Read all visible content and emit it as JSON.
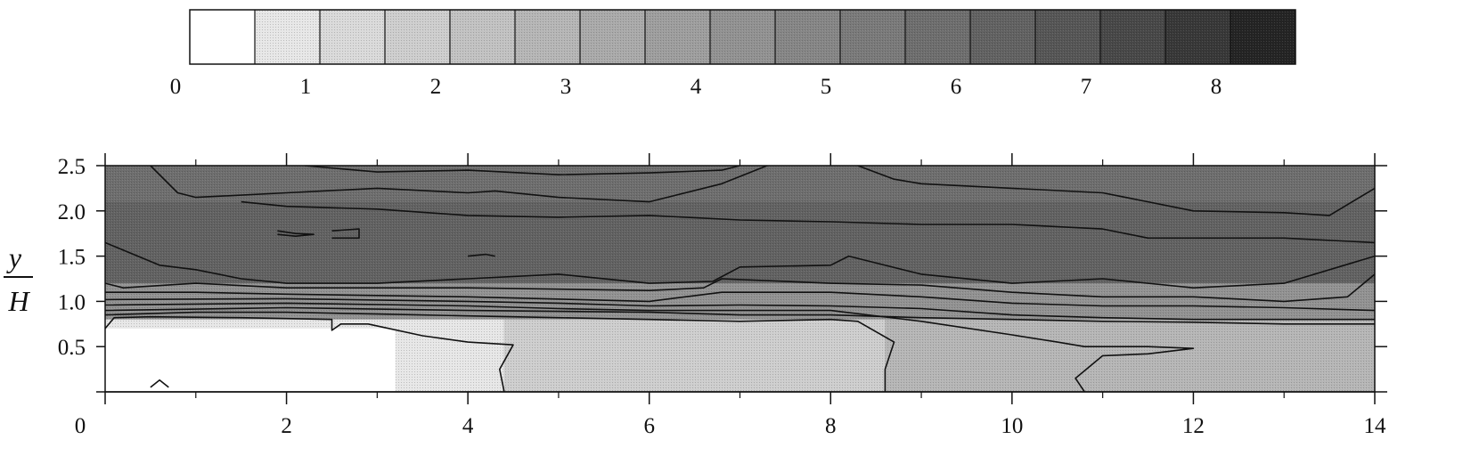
{
  "chart_data": {
    "type": "heatmap",
    "title": "",
    "xlabel": "",
    "ylabel": {
      "numerator": "y",
      "denominator": "H"
    },
    "xlim": [
      0,
      14
    ],
    "ylim": [
      0,
      2.5
    ],
    "x_ticks": [
      0,
      2,
      4,
      6,
      8,
      10,
      12,
      14
    ],
    "x_tick_labels": [
      "0",
      "2",
      "4",
      "6",
      "8",
      "10",
      "12",
      "14"
    ],
    "y_ticks": [
      0.5,
      1.0,
      1.5,
      2.0,
      2.5
    ],
    "y_tick_labels": [
      "0.5",
      "1.0",
      "1.5",
      "2.0",
      "2.5"
    ],
    "grid": false,
    "colorbar": {
      "placement": "top",
      "range": [
        0,
        8.5
      ],
      "bin_edges": [
        0,
        0.5,
        1,
        1.5,
        2,
        2.5,
        3,
        3.5,
        4,
        4.5,
        5,
        5.5,
        6,
        6.5,
        7,
        7.5,
        8,
        8.5
      ],
      "tick_values": [
        0,
        1,
        2,
        3,
        4,
        5,
        6,
        7,
        8
      ],
      "tick_labels": [
        "0",
        "1",
        "2",
        "3",
        "4",
        "5",
        "6",
        "7",
        "8"
      ],
      "colors": [
        "#ffffff",
        "#e7e7e7",
        "#dadada",
        "#cecece",
        "#c2c2c2",
        "#b6b6b6",
        "#aaaaaa",
        "#9e9e9e",
        "#929292",
        "#868686",
        "#7a7a7a",
        "#6e6e6e",
        "#626262",
        "#565656",
        "#484848",
        "#383838",
        "#242424"
      ]
    },
    "contours": [
      {
        "level": 1.5,
        "points": [
          [
            0,
            0.7
          ],
          [
            0.1,
            0.82
          ],
          [
            0.5,
            0.83
          ],
          [
            1.5,
            0.82
          ],
          [
            2.5,
            0.8
          ],
          [
            2.5,
            0.68
          ],
          [
            2.6,
            0.75
          ],
          [
            2.9,
            0.75
          ],
          [
            3.5,
            0.62
          ],
          [
            4.0,
            0.55
          ],
          [
            4.5,
            0.52
          ],
          [
            4.35,
            0.25
          ],
          [
            4.4,
            0
          ]
        ]
      },
      {
        "level": 1.5,
        "points": [
          [
            0.5,
            0.05
          ],
          [
            0.6,
            0.13
          ],
          [
            0.7,
            0.05
          ]
        ]
      },
      {
        "level": 2.0,
        "points": [
          [
            0,
            0.85
          ],
          [
            1,
            0.88
          ],
          [
            2,
            0.88
          ],
          [
            3,
            0.86
          ],
          [
            4,
            0.84
          ],
          [
            5,
            0.82
          ],
          [
            6,
            0.8
          ],
          [
            7,
            0.78
          ],
          [
            8,
            0.8
          ],
          [
            8.3,
            0.78
          ],
          [
            8.7,
            0.55
          ],
          [
            8.6,
            0.25
          ],
          [
            8.6,
            0
          ]
        ]
      },
      {
        "level": 2.5,
        "points": [
          [
            0,
            0.9
          ],
          [
            2,
            0.93
          ],
          [
            4,
            0.9
          ],
          [
            6,
            0.88
          ],
          [
            7,
            0.85
          ],
          [
            8,
            0.85
          ],
          [
            9,
            0.82
          ],
          [
            10,
            0.8
          ],
          [
            11,
            0.78
          ],
          [
            12,
            0.77
          ],
          [
            13,
            0.75
          ],
          [
            14,
            0.75
          ]
        ]
      },
      {
        "level": 3.0,
        "points": [
          [
            0,
            0.96
          ],
          [
            2,
            0.98
          ],
          [
            4,
            0.95
          ],
          [
            5,
            0.92
          ],
          [
            6,
            0.9
          ],
          [
            8,
            0.9
          ],
          [
            9,
            0.78
          ],
          [
            10,
            0.63
          ],
          [
            10.5,
            0.55
          ],
          [
            10.8,
            0.5
          ],
          [
            11.5,
            0.5
          ],
          [
            12.0,
            0.48
          ],
          [
            11.5,
            0.42
          ],
          [
            11.0,
            0.4
          ],
          [
            10.7,
            0.15
          ],
          [
            10.8,
            0
          ]
        ]
      },
      {
        "level": 3.5,
        "points": [
          [
            0,
            1.02
          ],
          [
            2,
            1.03
          ],
          [
            4,
            1.0
          ],
          [
            5,
            0.98
          ],
          [
            6,
            0.95
          ],
          [
            7,
            0.96
          ],
          [
            8,
            0.95
          ],
          [
            9,
            0.92
          ],
          [
            10,
            0.85
          ],
          [
            11,
            0.82
          ],
          [
            12,
            0.8
          ],
          [
            13,
            0.8
          ],
          [
            14,
            0.8
          ]
        ]
      },
      {
        "level": 4.0,
        "points": [
          [
            0,
            1.1
          ],
          [
            1,
            1.1
          ],
          [
            2,
            1.08
          ],
          [
            4,
            1.05
          ],
          [
            6,
            1.0
          ],
          [
            6.8,
            1.1
          ],
          [
            8,
            1.1
          ],
          [
            9,
            1.05
          ],
          [
            10,
            0.98
          ],
          [
            11,
            0.95
          ],
          [
            12,
            0.95
          ],
          [
            13,
            0.93
          ],
          [
            14,
            0.9
          ]
        ]
      },
      {
        "level": 4.5,
        "points": [
          [
            0,
            1.2
          ],
          [
            0.2,
            1.15
          ],
          [
            1,
            1.2
          ],
          [
            2,
            1.15
          ],
          [
            4,
            1.15
          ],
          [
            6,
            1.12
          ],
          [
            6.6,
            1.15
          ],
          [
            6.8,
            1.25
          ],
          [
            8,
            1.2
          ],
          [
            9,
            1.18
          ],
          [
            10,
            1.1
          ],
          [
            11,
            1.05
          ],
          [
            12,
            1.05
          ],
          [
            13,
            1.0
          ],
          [
            13.7,
            1.05
          ],
          [
            14,
            1.3
          ]
        ]
      },
      {
        "level": 5.0,
        "points": [
          [
            0,
            1.65
          ],
          [
            0.6,
            1.4
          ],
          [
            1,
            1.35
          ],
          [
            1.5,
            1.25
          ],
          [
            2,
            1.2
          ],
          [
            3,
            1.2
          ],
          [
            4,
            1.25
          ],
          [
            5,
            1.3
          ],
          [
            6,
            1.2
          ],
          [
            6.7,
            1.22
          ],
          [
            7,
            1.38
          ],
          [
            8,
            1.4
          ],
          [
            8.2,
            1.5
          ],
          [
            9,
            1.3
          ],
          [
            10,
            1.2
          ],
          [
            11,
            1.25
          ],
          [
            12,
            1.15
          ],
          [
            13,
            1.2
          ],
          [
            14,
            1.5
          ]
        ]
      },
      {
        "level": 5.5,
        "points": [
          [
            0.5,
            2.5
          ],
          [
            0.8,
            2.2
          ],
          [
            1,
            2.15
          ],
          [
            2,
            2.2
          ],
          [
            3,
            2.25
          ],
          [
            4,
            2.2
          ],
          [
            4.3,
            2.22
          ],
          [
            5,
            2.15
          ],
          [
            6,
            2.1
          ],
          [
            6.8,
            2.3
          ],
          [
            7.3,
            2.5
          ]
        ]
      },
      {
        "level": 5.5,
        "points": [
          [
            8.3,
            2.5
          ],
          [
            8.7,
            2.35
          ],
          [
            9,
            2.3
          ],
          [
            10,
            2.25
          ],
          [
            11,
            2.2
          ],
          [
            11.5,
            2.1
          ],
          [
            12,
            2.0
          ],
          [
            13,
            1.98
          ],
          [
            13.5,
            1.95
          ],
          [
            14,
            2.25
          ]
        ]
      },
      {
        "level": 6.0,
        "points": [
          [
            2.2,
            2.5
          ],
          [
            3,
            2.43
          ],
          [
            4,
            2.45
          ],
          [
            5,
            2.4
          ],
          [
            6,
            2.42
          ],
          [
            6.8,
            2.45
          ],
          [
            7,
            2.5
          ]
        ]
      },
      {
        "level": 6.0,
        "points": [
          [
            1.5,
            2.1
          ],
          [
            2,
            2.05
          ],
          [
            3,
            2.02
          ],
          [
            4,
            1.95
          ],
          [
            5,
            1.93
          ],
          [
            6,
            1.95
          ],
          [
            7,
            1.9
          ],
          [
            8,
            1.88
          ],
          [
            9,
            1.85
          ],
          [
            10,
            1.85
          ],
          [
            11,
            1.8
          ],
          [
            11.5,
            1.7
          ],
          [
            12,
            1.7
          ],
          [
            13,
            1.7
          ],
          [
            14,
            1.65
          ]
        ]
      },
      {
        "level": 6.5,
        "points": [
          [
            1.9,
            1.78
          ],
          [
            2.1,
            1.75
          ],
          [
            2.3,
            1.74
          ],
          [
            2.1,
            1.72
          ],
          [
            1.9,
            1.74
          ]
        ]
      },
      {
        "level": 6.5,
        "points": [
          [
            2.5,
            1.78
          ],
          [
            2.8,
            1.8
          ],
          [
            2.8,
            1.7
          ],
          [
            2.5,
            1.7
          ]
        ]
      },
      {
        "level": 6.5,
        "points": [
          [
            4.0,
            1.5
          ],
          [
            4.2,
            1.52
          ],
          [
            4.3,
            1.5
          ]
        ]
      }
    ],
    "field_shading": {
      "bands": [
        {
          "range": [
            0.0,
            0.5
          ],
          "color_index": 0
        },
        {
          "range": [
            0.5,
            1.5
          ],
          "color_index": 1
        },
        {
          "range": [
            1.5,
            2.5
          ],
          "color_index": 2
        },
        {
          "range": [
            2.5,
            3.0
          ],
          "color_index": 5
        },
        {
          "range": [
            3.0,
            3.5
          ],
          "color_index": 6
        },
        {
          "range": [
            3.5,
            4.0
          ],
          "color_index": 7
        },
        {
          "range": [
            4.0,
            4.5
          ],
          "color_index": 8
        },
        {
          "range": [
            4.5,
            5.0
          ],
          "color_index": 9
        },
        {
          "range": [
            5.0,
            5.5
          ],
          "color_index": 10
        },
        {
          "range": [
            5.5,
            6.0
          ],
          "color_index": 11
        },
        {
          "range": [
            6.0,
            6.5
          ],
          "color_index": 12
        },
        {
          "range": [
            6.5,
            8.5
          ],
          "color_index": 13
        }
      ],
      "low_region": {
        "x": [
          0,
          3.2
        ],
        "y": [
          0,
          0.7
        ],
        "color_index": 0
      },
      "lower_left_region": {
        "x": [
          0,
          4.4
        ],
        "y": [
          0,
          0.8
        ],
        "color_index": 1
      },
      "mid_low_region": {
        "x": [
          4.4,
          8.6
        ],
        "y": [
          0,
          0.8
        ],
        "color_index": 3
      },
      "right_low_region": {
        "x": [
          8.6,
          14
        ],
        "y": [
          0,
          0.8
        ],
        "color_index": 5
      },
      "upper_band": {
        "x": [
          0,
          14
        ],
        "y": [
          1.2,
          2.1
        ],
        "color_index": 12
      },
      "top_band": {
        "x": [
          0,
          14
        ],
        "y": [
          2.1,
          2.5
        ],
        "color_index": 11
      }
    }
  }
}
